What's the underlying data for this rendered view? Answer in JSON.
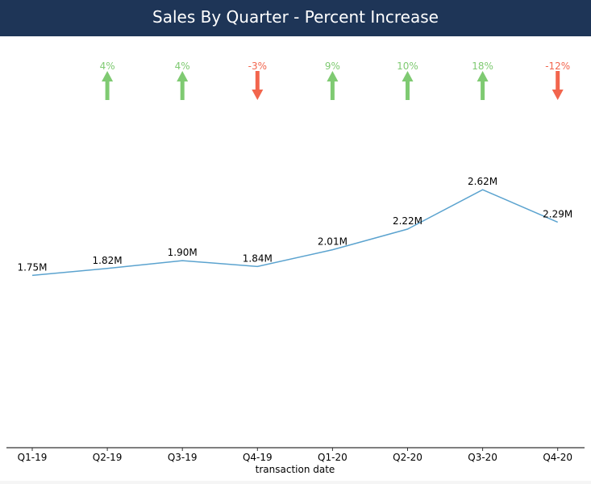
{
  "chart_data": {
    "type": "line",
    "title": "Sales By Quarter - Percent Increase",
    "xlabel": "transaction date",
    "ylabel": "",
    "categories": [
      "Q1-19",
      "Q2-19",
      "Q3-19",
      "Q4-19",
      "Q1-20",
      "Q2-20",
      "Q3-20",
      "Q4-20"
    ],
    "values": [
      1.75,
      1.82,
      1.9,
      1.84,
      2.01,
      2.22,
      2.62,
      2.29
    ],
    "value_labels": [
      "1.75M",
      "1.82M",
      "1.90M",
      "1.84M",
      "2.01M",
      "2.22M",
      "2.62M",
      "2.29M"
    ],
    "value_unit": "millions",
    "ylim": [
      0,
      3.85
    ],
    "pct_change": [
      null,
      4,
      4,
      -3,
      9,
      10,
      18,
      -12
    ],
    "pct_labels": [
      "",
      "4%",
      "4%",
      "-3%",
      "9%",
      "10%",
      "18%",
      "-12%"
    ],
    "grid": false,
    "colors": {
      "line": "#5ba3cf",
      "increase": "#7fca72",
      "decrease": "#f2654d",
      "title_bg": "#1e3557",
      "axis": "#333333"
    }
  }
}
